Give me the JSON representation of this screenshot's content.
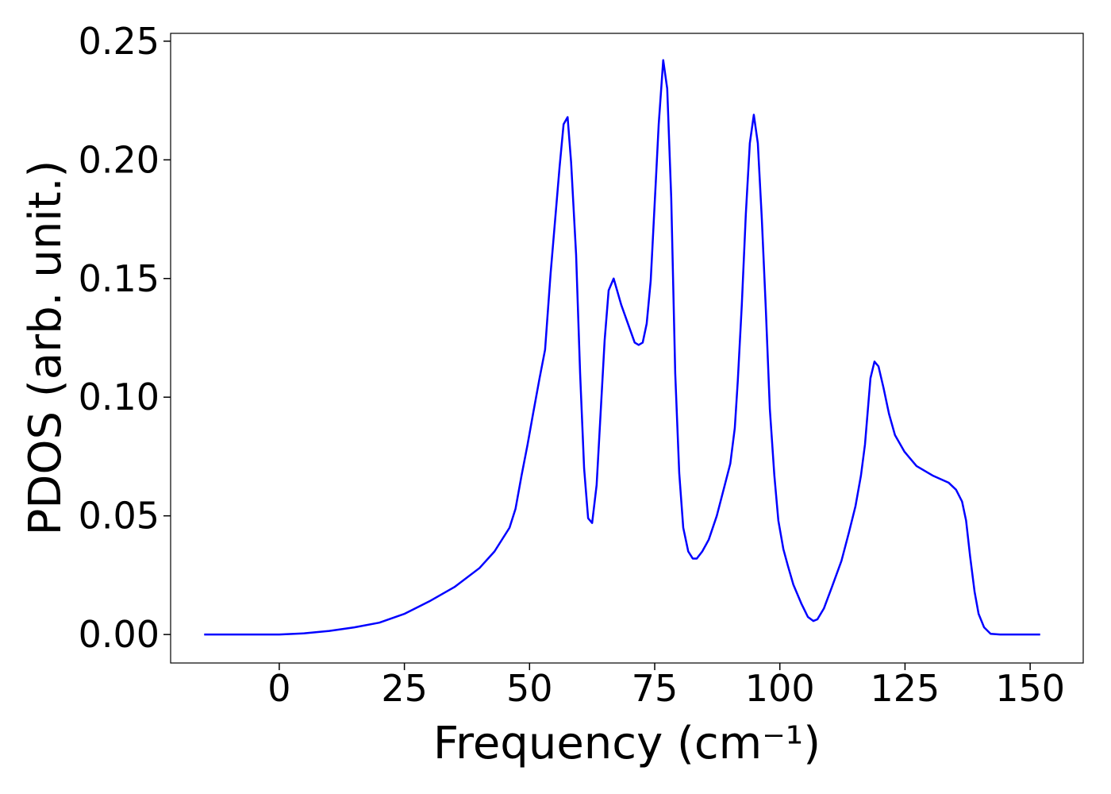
{
  "chart_data": {
    "type": "line",
    "x_label": "Frequency (cm⁻¹)",
    "y_label": "PDOS (arb. unit.)",
    "xlim": [
      -21.7,
      160.6
    ],
    "ylim": [
      -0.012,
      0.2533
    ],
    "xticks": [
      0,
      25,
      50,
      75,
      100,
      125,
      150
    ],
    "yticks": [
      {
        "value": 0,
        "label": "0.00"
      },
      {
        "value": 0.05,
        "label": "0.05"
      },
      {
        "value": 0.1,
        "label": "0.10"
      },
      {
        "value": 0.15,
        "label": "0.15"
      },
      {
        "value": 0.2,
        "label": "0.20"
      },
      {
        "value": 0.25,
        "label": "0.25"
      }
    ],
    "series": [
      {
        "color": "#0000ff",
        "x": [
          -15,
          0,
          5,
          10,
          15,
          20,
          25,
          30,
          35,
          40,
          43,
          46,
          47.2,
          48.4,
          49.6,
          50.7,
          52,
          53.1,
          54.2,
          56,
          56.8,
          57.6,
          58.3,
          59.3,
          60.1,
          60.9,
          61.7,
          62.5,
          63.4,
          65,
          65.8,
          66.8,
          68.3,
          71,
          71.8,
          72.6,
          73.4,
          74.2,
          75.2,
          75.8,
          76.7,
          77.5,
          78.3,
          79.1,
          79.9,
          80.7,
          81.7,
          82.6,
          83.4,
          84.5,
          85.8,
          87.4,
          89,
          90.1,
          91,
          91.6,
          92.4,
          93.2,
          94,
          94.8,
          95.6,
          96.4,
          97.2,
          98,
          98.9,
          99.7,
          100.7,
          101.6,
          102.7,
          104.3,
          105.6,
          106.7,
          107.5,
          108.8,
          110.4,
          112.3,
          113.8,
          115.1,
          116.2,
          117,
          118.1,
          118.9,
          119.7,
          120.7,
          121.8,
          123,
          124.9,
          127.3,
          130.5,
          133.7,
          135.2,
          136.4,
          137.2,
          138,
          138.9,
          139.7,
          140.8,
          142.1,
          144,
          152
        ],
        "values": [
          0,
          0,
          0.0005,
          0.0015,
          0.003,
          0.005,
          0.0087,
          0.014,
          0.02,
          0.028,
          0.035,
          0.045,
          0.053,
          0.067,
          0.08,
          0.093,
          0.108,
          0.12,
          0.152,
          0.197,
          0.215,
          0.218,
          0.199,
          0.16,
          0.11,
          0.07,
          0.049,
          0.047,
          0.063,
          0.124,
          0.145,
          0.15,
          0.139,
          0.123,
          0.122,
          0.123,
          0.131,
          0.149,
          0.19,
          0.215,
          0.242,
          0.23,
          0.184,
          0.11,
          0.068,
          0.045,
          0.035,
          0.032,
          0.032,
          0.035,
          0.04,
          0.05,
          0.063,
          0.072,
          0.087,
          0.107,
          0.139,
          0.177,
          0.207,
          0.219,
          0.207,
          0.175,
          0.137,
          0.095,
          0.067,
          0.048,
          0.036,
          0.029,
          0.021,
          0.013,
          0.0074,
          0.0057,
          0.0064,
          0.011,
          0.02,
          0.031,
          0.043,
          0.054,
          0.067,
          0.08,
          0.108,
          0.115,
          0.113,
          0.104,
          0.093,
          0.084,
          0.077,
          0.071,
          0.067,
          0.064,
          0.061,
          0.056,
          0.048,
          0.033,
          0.018,
          0.0087,
          0.003,
          0.0003,
          0,
          0
        ]
      }
    ]
  }
}
